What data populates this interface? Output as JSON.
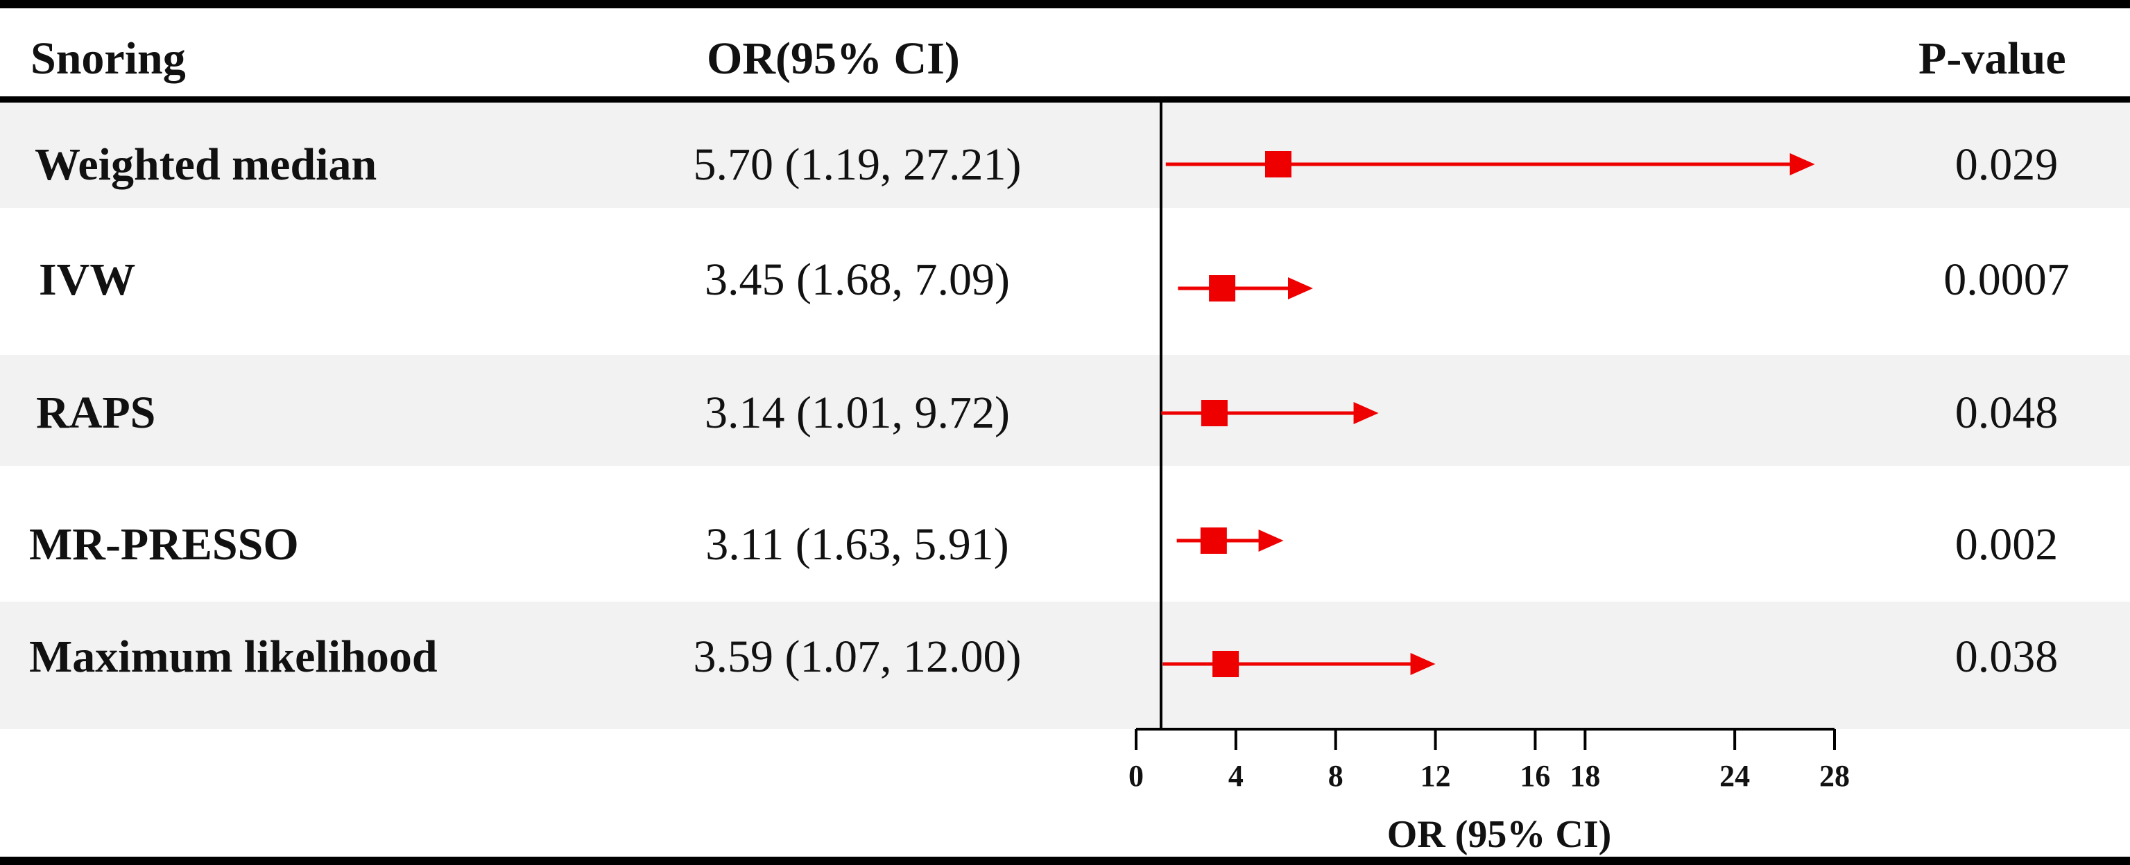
{
  "header": {
    "col_method": "Snoring",
    "col_or": "OR(95% CI)",
    "col_p": "P-value"
  },
  "chart_data": {
    "type": "forest",
    "xlabel": "OR (95% CI)",
    "xlim": [
      0,
      28
    ],
    "xticks": [
      0,
      4,
      8,
      12,
      16,
      18,
      24,
      28
    ],
    "reference_line": 1,
    "grid": false,
    "marker_color": "#ee0000",
    "rows": [
      {
        "method": "Weighted median",
        "or": 5.7,
        "lower": 1.19,
        "upper": 27.21,
        "or_text": "5.70 (1.19, 27.21)",
        "p": "0.029"
      },
      {
        "method": "IVW",
        "or": 3.45,
        "lower": 1.68,
        "upper": 7.09,
        "or_text": "3.45 (1.68, 7.09)",
        "p": "0.0007"
      },
      {
        "method": "RAPS",
        "or": 3.14,
        "lower": 1.01,
        "upper": 9.72,
        "or_text": "3.14 (1.01, 9.72)",
        "p": "0.048"
      },
      {
        "method": "MR-PRESSO",
        "or": 3.11,
        "lower": 1.63,
        "upper": 5.91,
        "or_text": "3.11 (1.63, 5.91)",
        "p": "0.002"
      },
      {
        "method": "Maximum likelihood",
        "or": 3.59,
        "lower": 1.07,
        "upper": 12.0,
        "or_text": "3.59 (1.07, 12.00)",
        "p": "0.038"
      }
    ]
  }
}
